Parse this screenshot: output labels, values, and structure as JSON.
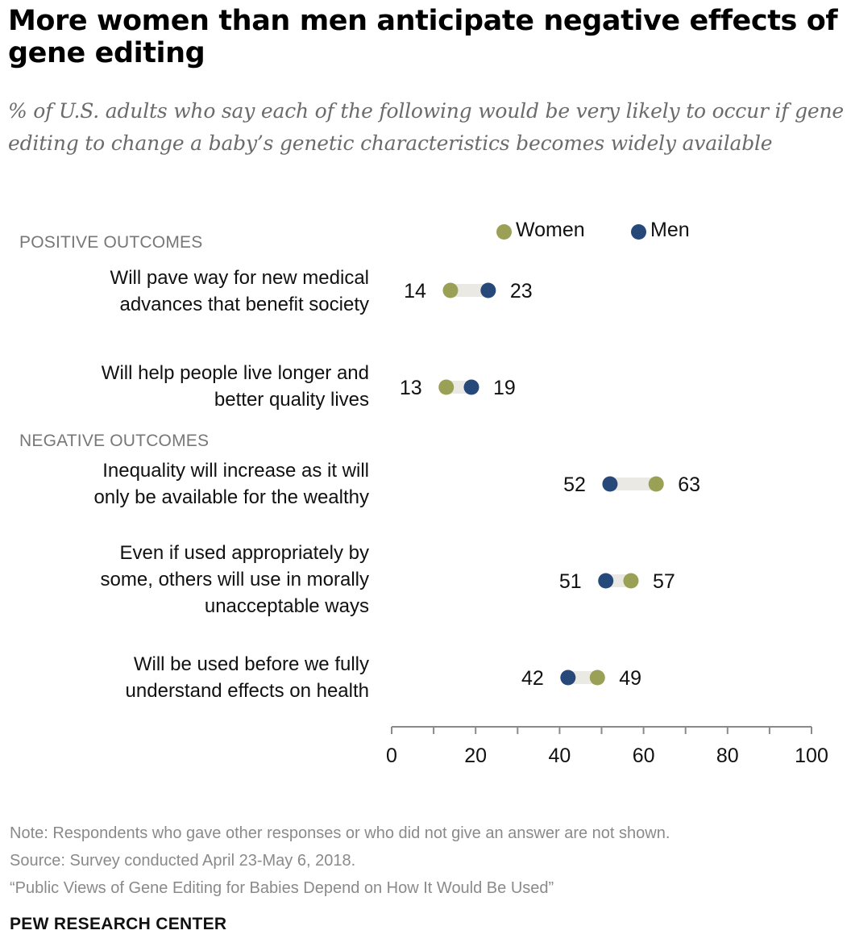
{
  "title": "More women than men anticipate negative effects of gene editing",
  "subtitle": "% of U.S. adults who say each of the following would be very likely to occur if gene editing to change a baby’s genetic characteristics becomes widely available",
  "colors": {
    "women": "#9aa157",
    "men": "#27497a",
    "connector": "#ebe9e4",
    "axis": "#8a8a8a"
  },
  "sections": {
    "positive": "POSITIVE OUTCOMES",
    "negative": "NEGATIVE OUTCOMES"
  },
  "rows": [
    {
      "label_lines": [
        "Will pave way for new medical",
        "advances that benefit society"
      ]
    },
    {
      "label_lines": [
        "Will help people live longer and",
        "better quality lives"
      ]
    },
    {
      "label_lines": [
        "Inequality will increase as it will",
        "only be available for the wealthy"
      ]
    },
    {
      "label_lines": [
        "Even if used appropriately by",
        "some, others will use in morally",
        "unacceptable ways"
      ]
    },
    {
      "label_lines": [
        "Will be used before we fully",
        "understand effects on health"
      ]
    }
  ],
  "chart_data": {
    "type": "scatter",
    "title": "More women than men anticipate negative effects of gene editing",
    "categories": [
      "Will pave way for new medical advances that benefit society",
      "Will help people live longer and better quality lives",
      "Inequality will increase as it will only be available for the wealthy",
      "Even if used appropriately by some, others will use in morally unacceptable ways",
      "Will be used before we fully understand effects on health"
    ],
    "series": [
      {
        "name": "Women",
        "values": [
          14,
          13,
          63,
          57,
          49
        ]
      },
      {
        "name": "Men",
        "values": [
          23,
          19,
          52,
          51,
          42
        ]
      }
    ],
    "xlim": [
      0,
      100
    ],
    "xticks": [
      0,
      20,
      40,
      60,
      80,
      100
    ],
    "legend": "top-right"
  },
  "footer": {
    "note": "Note: Respondents who gave other responses or who did not give an answer are not shown.",
    "source": "Source: Survey conducted April 23-May 6, 2018.",
    "report": "“Public Views of Gene Editing for Babies Depend on How It Would Be Used”",
    "brand": "PEW RESEARCH CENTER"
  }
}
